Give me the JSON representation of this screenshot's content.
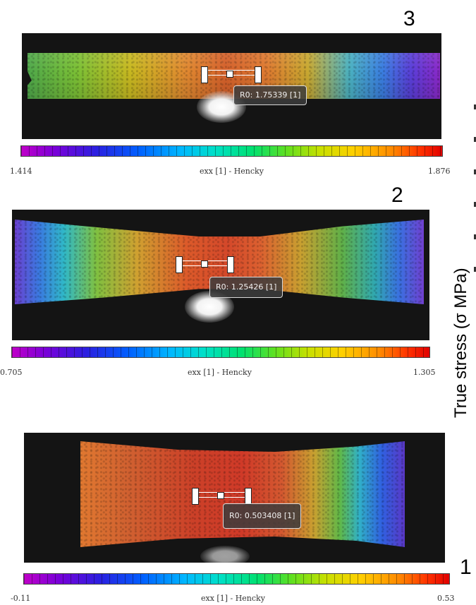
{
  "panels": [
    {
      "label": "3",
      "readout": "R0: 1.75339 [1]",
      "colorbar": {
        "min": "1.414",
        "max": "1.876",
        "title": "exx [1] - Hencky"
      }
    },
    {
      "label": "2",
      "readout": "R0: 1.25426 [1]",
      "colorbar": {
        "min": "0.705",
        "max": "1.305",
        "title": "exx [1] - Hencky"
      }
    },
    {
      "label": "1",
      "readout": "R0: 0.503408 [1]",
      "colorbar": {
        "min": "-0.11",
        "max": "0.53",
        "title": "exx [1] - Hencky"
      }
    }
  ],
  "axis_title": "True stress (σ MPa)"
}
